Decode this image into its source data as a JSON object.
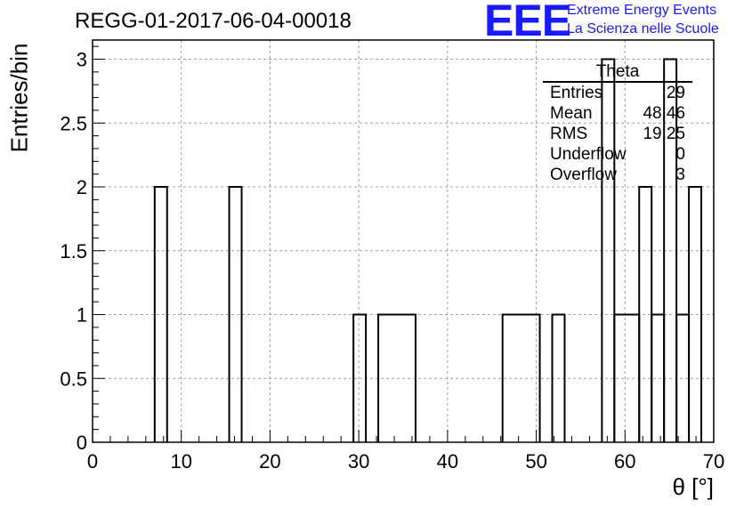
{
  "page": {
    "title": "REGG-01-2017-06-04-00018",
    "logo": {
      "mark": "EEE",
      "line1": "Extreme Energy Events",
      "line2": "La Scienza nelle Scuole",
      "color": "#1a1aff"
    }
  },
  "stats": {
    "title": "Theta",
    "rows": [
      {
        "key": "Entries",
        "value": "29"
      },
      {
        "key": "Mean",
        "value": "48.46"
      },
      {
        "key": "RMS",
        "value": "19.25"
      },
      {
        "key": "Underflow",
        "value": "0"
      },
      {
        "key": "Overflow",
        "value": "3"
      }
    ]
  },
  "chart_data": {
    "type": "bar",
    "style": "step-histogram",
    "title": "REGG-01-2017-06-04-00018",
    "xlabel": "θ [°]",
    "ylabel": "Entries/bin",
    "xlim": [
      0,
      70
    ],
    "ylim": [
      0,
      3.15
    ],
    "bin_width": 1.4,
    "grid": true,
    "x_ticks": [
      0,
      10,
      20,
      30,
      40,
      50,
      60,
      70
    ],
    "y_ticks": [
      0,
      0.5,
      1,
      1.5,
      2,
      2.5,
      3
    ],
    "x_tick_labels": [
      "0",
      "10",
      "20",
      "30",
      "40",
      "50",
      "60",
      "70"
    ],
    "y_tick_labels": [
      "0",
      "0.5",
      "1",
      "1.5",
      "2",
      "2.5",
      "3"
    ],
    "bins": [
      {
        "x0": 7.0,
        "x1": 8.4,
        "value": 2
      },
      {
        "x0": 15.4,
        "x1": 16.8,
        "value": 2
      },
      {
        "x0": 29.4,
        "x1": 30.8,
        "value": 1
      },
      {
        "x0": 32.2,
        "x1": 36.4,
        "value": 1
      },
      {
        "x0": 46.2,
        "x1": 50.4,
        "value": 1
      },
      {
        "x0": 51.8,
        "x1": 53.2,
        "value": 1
      },
      {
        "x0": 57.4,
        "x1": 58.8,
        "value": 3
      },
      {
        "x0": 58.8,
        "x1": 61.6,
        "value": 1
      },
      {
        "x0": 61.6,
        "x1": 63.0,
        "value": 2
      },
      {
        "x0": 63.0,
        "x1": 64.4,
        "value": 1
      },
      {
        "x0": 64.4,
        "x1": 65.8,
        "value": 3
      },
      {
        "x0": 65.8,
        "x1": 67.2,
        "value": 1
      },
      {
        "x0": 67.2,
        "x1": 68.6,
        "value": 2
      }
    ]
  }
}
